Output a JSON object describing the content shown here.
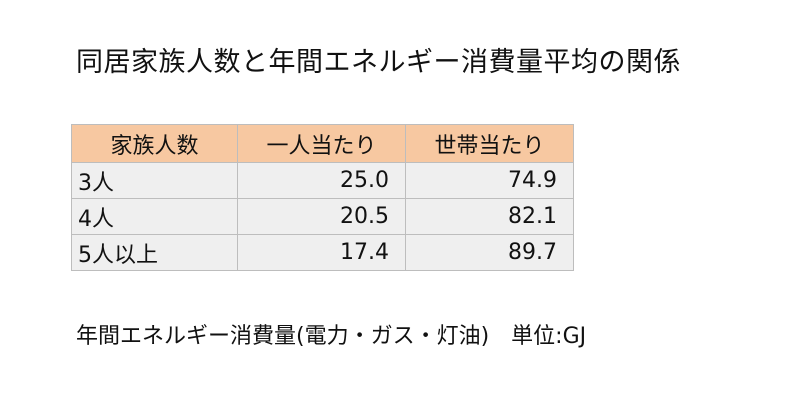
{
  "chart_data": {
    "type": "table",
    "title": "同居家族人数と年間エネルギー消費量平均の関係",
    "columns": [
      "家族人数",
      "一人当たり",
      "世帯当たり"
    ],
    "rows": [
      {
        "label": "3人",
        "per_person": "25.0",
        "per_household": "74.9"
      },
      {
        "label": "4人",
        "per_person": "20.5",
        "per_household": "82.1"
      },
      {
        "label": "5人以上",
        "per_person": "17.4",
        "per_household": "89.7"
      }
    ],
    "note": "年間エネルギー消費量(電力・ガス・灯油)　単位:GJ"
  },
  "colors": {
    "header_bg": "#f7c8a1",
    "cell_bg": "#efefef",
    "border": "#bdbdbd"
  }
}
